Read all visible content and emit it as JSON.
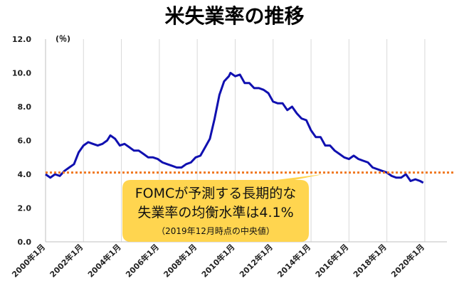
{
  "chart_data": {
    "type": "line",
    "title": "米失業率の推移",
    "y_unit": "(％)",
    "ylim": [
      0,
      12
    ],
    "y_ticks": [
      "0.0",
      "2.0",
      "4.0",
      "6.0",
      "8.0",
      "10.0",
      "12.0"
    ],
    "x_range": [
      "2000-01",
      "2021-03"
    ],
    "x_ticks": [
      {
        "label": "2000年1月",
        "date": "2000-01"
      },
      {
        "label": "2002年1月",
        "date": "2002-01"
      },
      {
        "label": "2004年1月",
        "date": "2004-01"
      },
      {
        "label": "2006年1月",
        "date": "2006-01"
      },
      {
        "label": "2008年1月",
        "date": "2008-01"
      },
      {
        "label": "2010年1月",
        "date": "2010-01"
      },
      {
        "label": "2012年1月",
        "date": "2012-01"
      },
      {
        "label": "2014年1月",
        "date": "2014-01"
      },
      {
        "label": "2016年1月",
        "date": "2016-01"
      },
      {
        "label": "2018年1月",
        "date": "2018-01"
      },
      {
        "label": "2020年1月",
        "date": "2020-01"
      }
    ],
    "grid": "vertical",
    "series": [
      {
        "color": "#1010b0",
        "points": [
          [
            "2000-01",
            4.0
          ],
          [
            "2000-04",
            3.8
          ],
          [
            "2000-07",
            4.0
          ],
          [
            "2000-10",
            3.9
          ],
          [
            "2001-01",
            4.2
          ],
          [
            "2001-04",
            4.4
          ],
          [
            "2001-07",
            4.6
          ],
          [
            "2001-10",
            5.3
          ],
          [
            "2002-01",
            5.7
          ],
          [
            "2002-04",
            5.9
          ],
          [
            "2002-07",
            5.8
          ],
          [
            "2002-10",
            5.7
          ],
          [
            "2003-01",
            5.8
          ],
          [
            "2003-04",
            6.0
          ],
          [
            "2003-06",
            6.3
          ],
          [
            "2003-09",
            6.1
          ],
          [
            "2003-12",
            5.7
          ],
          [
            "2004-03",
            5.8
          ],
          [
            "2004-06",
            5.6
          ],
          [
            "2004-09",
            5.4
          ],
          [
            "2004-12",
            5.4
          ],
          [
            "2005-03",
            5.2
          ],
          [
            "2005-06",
            5.0
          ],
          [
            "2005-09",
            5.0
          ],
          [
            "2005-12",
            4.9
          ],
          [
            "2006-03",
            4.7
          ],
          [
            "2006-06",
            4.6
          ],
          [
            "2006-09",
            4.5
          ],
          [
            "2006-12",
            4.4
          ],
          [
            "2007-03",
            4.4
          ],
          [
            "2007-06",
            4.6
          ],
          [
            "2007-09",
            4.7
          ],
          [
            "2007-12",
            5.0
          ],
          [
            "2008-03",
            5.1
          ],
          [
            "2008-06",
            5.6
          ],
          [
            "2008-09",
            6.1
          ],
          [
            "2008-12",
            7.3
          ],
          [
            "2009-03",
            8.7
          ],
          [
            "2009-06",
            9.5
          ],
          [
            "2009-09",
            9.8
          ],
          [
            "2009-10",
            10.0
          ],
          [
            "2010-01",
            9.8
          ],
          [
            "2010-04",
            9.9
          ],
          [
            "2010-07",
            9.4
          ],
          [
            "2010-10",
            9.4
          ],
          [
            "2011-01",
            9.1
          ],
          [
            "2011-04",
            9.1
          ],
          [
            "2011-07",
            9.0
          ],
          [
            "2011-10",
            8.8
          ],
          [
            "2012-01",
            8.3
          ],
          [
            "2012-04",
            8.2
          ],
          [
            "2012-07",
            8.2
          ],
          [
            "2012-10",
            7.8
          ],
          [
            "2013-01",
            8.0
          ],
          [
            "2013-04",
            7.6
          ],
          [
            "2013-07",
            7.3
          ],
          [
            "2013-10",
            7.2
          ],
          [
            "2014-01",
            6.6
          ],
          [
            "2014-04",
            6.2
          ],
          [
            "2014-07",
            6.2
          ],
          [
            "2014-10",
            5.7
          ],
          [
            "2015-01",
            5.7
          ],
          [
            "2015-04",
            5.4
          ],
          [
            "2015-07",
            5.2
          ],
          [
            "2015-10",
            5.0
          ],
          [
            "2016-01",
            4.9
          ],
          [
            "2016-04",
            5.1
          ],
          [
            "2016-07",
            4.9
          ],
          [
            "2016-10",
            4.8
          ],
          [
            "2017-01",
            4.7
          ],
          [
            "2017-04",
            4.4
          ],
          [
            "2017-07",
            4.3
          ],
          [
            "2017-10",
            4.2
          ],
          [
            "2018-01",
            4.1
          ],
          [
            "2018-04",
            3.9
          ],
          [
            "2018-07",
            3.8
          ],
          [
            "2018-10",
            3.8
          ],
          [
            "2019-01",
            4.0
          ],
          [
            "2019-04",
            3.6
          ],
          [
            "2019-07",
            3.7
          ],
          [
            "2019-10",
            3.6
          ],
          [
            "2019-12",
            3.5
          ]
        ]
      }
    ],
    "reference_line": {
      "value": 4.1,
      "color": "#f07820"
    },
    "annotation": {
      "line1": "FOMCが予測する長期的な",
      "line2": "失業率の均衡水準は4.1%",
      "line3": "（2019年12月時点の中央値）",
      "fill": "#ffd54f"
    }
  }
}
